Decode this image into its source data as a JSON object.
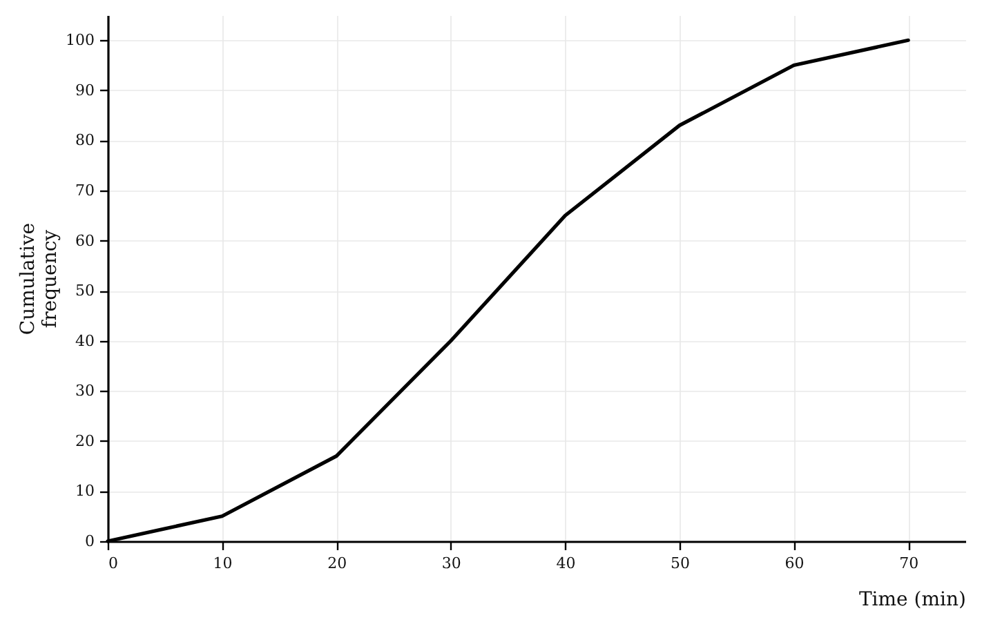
{
  "chart_data": {
    "type": "line",
    "xlabel": "Time (min)",
    "ylabel": "Cumulative frequency",
    "x": [
      0,
      10,
      20,
      30,
      40,
      50,
      60,
      70
    ],
    "series": [
      {
        "color": "#000000",
        "values": [
          0,
          5,
          17,
          40,
          65,
          83,
          95,
          100
        ]
      }
    ],
    "xlim": [
      0,
      75
    ],
    "xticks": [
      0,
      10,
      20,
      30,
      40,
      50,
      60,
      70
    ],
    "ylim": [
      0,
      105
    ],
    "yticks": [
      0,
      10,
      20,
      30,
      40,
      50,
      60,
      70,
      80,
      90,
      100
    ],
    "grid": true,
    "marker": "none",
    "line_style": "solid"
  }
}
